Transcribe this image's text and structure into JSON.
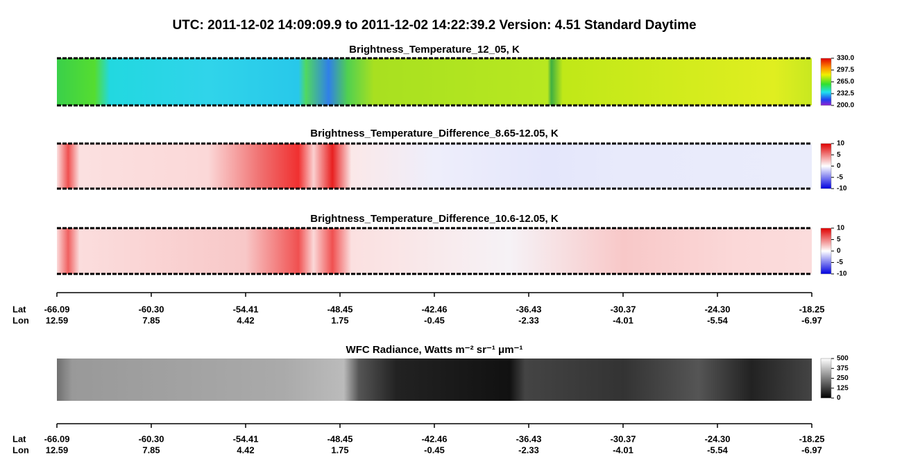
{
  "title": "UTC:  2011-12-02   14:09:09.9  to  2011-12-02   14:22:39.2    Version: 4.51  Standard Daytime",
  "panels": [
    {
      "title": "Brightness_Temperature_12_05, K",
      "colorbar_ticks": [
        "330.0",
        "297.5",
        "265.0",
        "232.5",
        "200.0"
      ]
    },
    {
      "title": "Brightness_Temperature_Difference_8.65-12.05, K",
      "colorbar_ticks": [
        "10",
        "5",
        "0",
        "-5",
        "-10"
      ]
    },
    {
      "title": "Brightness_Temperature_Difference_10.6-12.05, K",
      "colorbar_ticks": [
        "10",
        "5",
        "0",
        "-5",
        "-10"
      ]
    },
    {
      "title": "WFC Radiance, Watts m⁻² sr⁻¹ μm⁻¹",
      "colorbar_ticks": [
        "500",
        "375",
        "250",
        "125",
        "0"
      ]
    }
  ],
  "axes": [
    {
      "lat_label": "Lat",
      "lon_label": "Lon",
      "lat": [
        "-66.09",
        "-60.30",
        "-54.41",
        "-48.45",
        "-42.46",
        "-36.43",
        "-30.37",
        "-24.30",
        "-18.25"
      ],
      "lon": [
        "12.59",
        "7.85",
        "4.42",
        "1.75",
        "-0.45",
        "-2.33",
        "-4.01",
        "-5.54",
        "-6.97"
      ]
    },
    {
      "lat_label": "Lat",
      "lon_label": "Lon",
      "lat": [
        "-66.09",
        "-60.30",
        "-54.41",
        "-48.45",
        "-42.46",
        "-36.43",
        "-30.37",
        "-24.30",
        "-18.25"
      ],
      "lon": [
        "12.59",
        "7.85",
        "4.42",
        "1.75",
        "-0.45",
        "-2.33",
        "-4.01",
        "-5.54",
        "-6.97"
      ]
    }
  ]
}
